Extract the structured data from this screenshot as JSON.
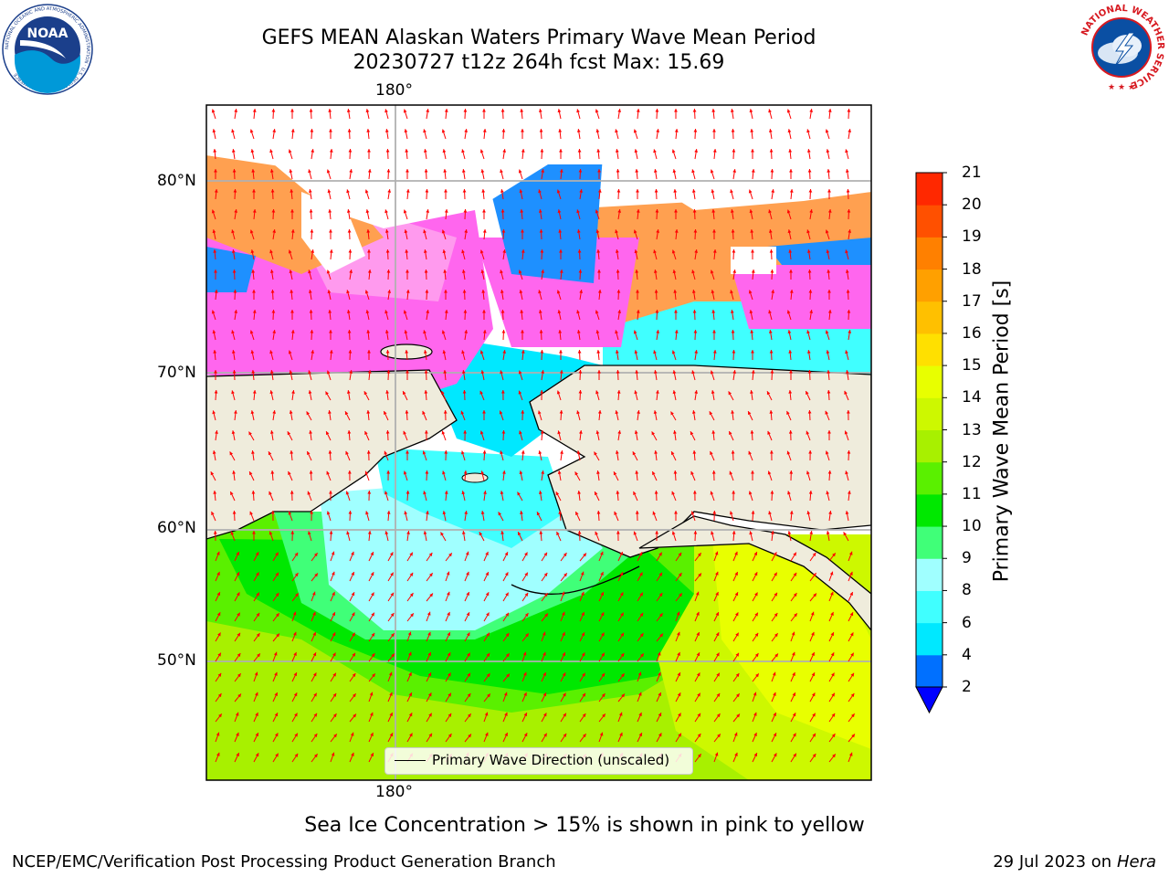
{
  "header": {
    "title_line1": "GEFS MEAN Alaskan Waters Primary Wave Mean Period",
    "title_line2": "20230727 t12z 264h fcst   Max: 15.69"
  },
  "logos": {
    "noaa_text": "NOAA",
    "noaa_ring_text": "NATIONAL OCEANIC AND ATMOSPHERIC ADMINISTRATION · U.S. DEPARTMENT OF COMMERCE",
    "nws_ring_text": "NATIONAL WEATHER SERVICE"
  },
  "map": {
    "longitude_label_top": "180°",
    "longitude_label_bottom": "180°",
    "latitude_labels": [
      "80°N",
      "70°N",
      "60°N",
      "50°N"
    ],
    "legend_label": "Primary Wave Direction (unscaled)",
    "projection": "polar stereographic",
    "land_color": "#efecdc",
    "arrow_color": "#ff0000"
  },
  "colorbar": {
    "title": "Primary Wave Mean Period [s]",
    "tick_labels": [
      "21",
      "20",
      "19",
      "18",
      "17",
      "16",
      "15",
      "14",
      "13",
      "12",
      "11",
      "10",
      "9",
      "8",
      "6",
      "4",
      "2"
    ],
    "levels": [
      2,
      4,
      6,
      8,
      9,
      10,
      11,
      12,
      13,
      14,
      15,
      16,
      17,
      18,
      19,
      20,
      21
    ],
    "colors": [
      "#0070ff",
      "#00e8ff",
      "#40ffff",
      "#a0ffff",
      "#40ff78",
      "#00e800",
      "#5af000",
      "#a8f000",
      "#cdf800",
      "#e8ff00",
      "#ffe000",
      "#ffc000",
      "#ffa000",
      "#ff8000",
      "#ff5000",
      "#ff2800",
      "#ff0000"
    ],
    "extend_color": "#0000ff"
  },
  "caption": "Sea Ice Concentration > 15% is shown in pink to yellow",
  "footer": {
    "left": "NCEP/EMC/Verification Post Processing Product Generation Branch",
    "right_date": "29 Jul 2023 on ",
    "right_host": "Hera"
  }
}
